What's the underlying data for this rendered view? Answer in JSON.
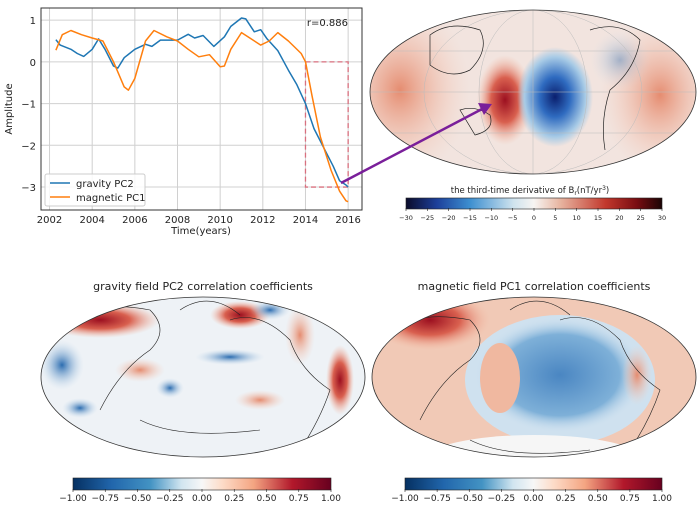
{
  "chart_data": [
    {
      "type": "line",
      "xlabel": "Time(years)",
      "ylabel": "Amplitude",
      "xlim": [
        2001.6,
        2016.65
      ],
      "ylim": [
        -3.55,
        1.29
      ],
      "xticks": [
        2002,
        2004,
        2006,
        2008,
        2010,
        2012,
        2014,
        2016
      ],
      "yticks": [
        1,
        0,
        -1,
        -2,
        -3
      ],
      "grid": true,
      "legend": "bottom-left",
      "annotation": "r=0.886",
      "highlight_box": {
        "x": [
          2014,
          2016
        ],
        "y": [
          -3,
          0
        ],
        "color": "#d9707f"
      },
      "arrow_color": "#7a1f9a",
      "series": [
        {
          "name": "gravity PC2",
          "color": "#1f77b4",
          "x": [
            2002.3,
            2002.5,
            2003,
            2003.3,
            2003.6,
            2004,
            2004.3,
            2004.6,
            2005,
            2005.2,
            2005.5,
            2006,
            2006.5,
            2006.8,
            2007.2,
            2008,
            2008.5,
            2008.8,
            2009.2,
            2009.7,
            2010.2,
            2010.5,
            2011,
            2011.2,
            2011.6,
            2011.9,
            2012.2,
            2012.7,
            2013.2,
            2013.6,
            2014,
            2014.4,
            2014.8,
            2015.3,
            2015.6,
            2015.9,
            2016
          ],
          "y": [
            0.53,
            0.4,
            0.3,
            0.2,
            0.13,
            0.3,
            0.55,
            0.3,
            -0.1,
            -0.15,
            0.1,
            0.3,
            0.42,
            0.37,
            0.52,
            0.52,
            0.66,
            0.57,
            0.63,
            0.37,
            0.6,
            0.85,
            1.05,
            1.03,
            0.72,
            0.77,
            0.55,
            0.27,
            -0.2,
            -0.55,
            -1.0,
            -1.6,
            -2.0,
            -2.5,
            -2.85,
            -2.95,
            -3.0
          ]
        },
        {
          "name": "magnetic PC1",
          "color": "#ff7f0e",
          "x": [
            2002.3,
            2002.6,
            2003,
            2003.5,
            2004,
            2004.5,
            2005,
            2005.5,
            2005.7,
            2006,
            2006.5,
            2006.9,
            2007.5,
            2008,
            2008.5,
            2009,
            2009.5,
            2010,
            2010.2,
            2010.5,
            2011,
            2011.3,
            2011.9,
            2012.3,
            2012.7,
            2013.2,
            2013.8,
            2014,
            2014.3,
            2014.7,
            2015.2,
            2015.6,
            2015.9,
            2016
          ],
          "y": [
            0.28,
            0.65,
            0.75,
            0.65,
            0.57,
            0.5,
            0.0,
            -0.6,
            -0.68,
            -0.4,
            0.5,
            0.75,
            0.6,
            0.5,
            0.3,
            0.12,
            0.17,
            -0.12,
            -0.1,
            0.3,
            0.7,
            0.6,
            0.4,
            0.5,
            0.7,
            0.5,
            0.2,
            0.0,
            -0.8,
            -1.8,
            -2.6,
            -3.1,
            -3.33,
            -3.35
          ]
        }
      ]
    },
    {
      "type": "heatmap",
      "title": "",
      "colorbar_label": "the third-time derivative of B",
      "colorbar_label_sub": "r",
      "colorbar_label_unit": "(nT/yr",
      "colorbar_label_sup": "3",
      "colorbar_label_end": ")",
      "colormap": "RdBu_r (dark ends)",
      "clim": [
        -30,
        30
      ],
      "ticks": [
        "−30",
        "−25",
        "−20",
        "−15",
        "−10",
        "−5",
        "0",
        "5",
        "10",
        "15",
        "20",
        "25",
        "30"
      ]
    },
    {
      "type": "heatmap",
      "title": "gravity field PC2 correlation coefficients",
      "colormap": "RdBu_r",
      "clim": [
        -1,
        1
      ],
      "ticks": [
        "−1.00",
        "−0.75",
        "−0.50",
        "−0.25",
        "0.00",
        "0.25",
        "0.50",
        "0.75",
        "1.00"
      ]
    },
    {
      "type": "heatmap",
      "title": "magnetic field PC1 correlation coefficients",
      "colormap": "RdBu_r",
      "clim": [
        -1,
        1
      ],
      "ticks": [
        "−1.00",
        "−0.75",
        "−0.50",
        "−0.25",
        "0.00",
        "0.25",
        "0.50",
        "0.75",
        "1.00"
      ]
    }
  ]
}
